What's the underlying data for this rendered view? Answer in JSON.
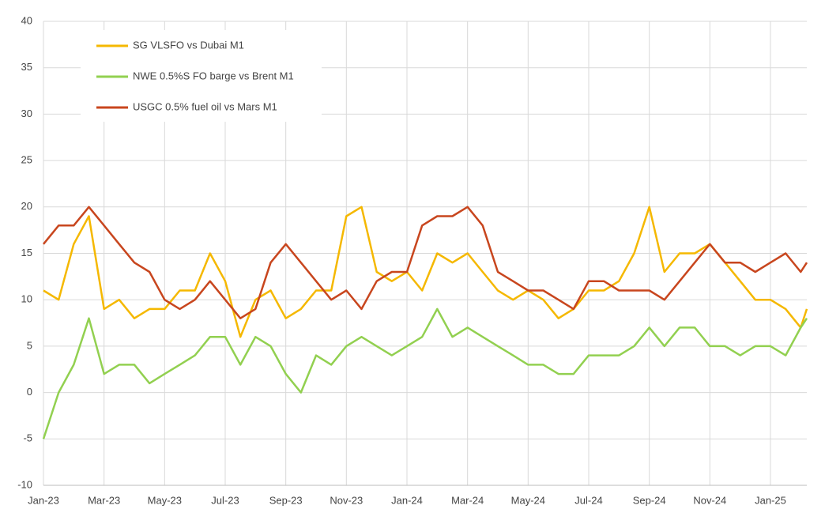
{
  "chart_data": {
    "type": "line",
    "x": [
      0,
      0.5,
      1,
      1.5,
      2,
      2.5,
      3,
      3.5,
      4,
      4.5,
      5,
      5.5,
      6,
      6.5,
      7,
      7.5,
      8,
      8.5,
      9,
      9.5,
      10,
      10.5,
      11,
      11.5,
      12,
      12.5,
      13,
      13.5,
      14,
      14.5,
      15,
      15.5,
      16,
      16.5,
      17,
      17.5,
      18,
      18.5,
      19,
      19.5,
      20,
      20.5,
      21,
      21.5,
      22,
      22.5,
      23,
      23.5,
      24,
      24.5,
      25,
      25.2
    ],
    "series": [
      {
        "name": "SG VLSFO vs Dubai M1",
        "color": "#f5b800",
        "values": [
          11,
          10,
          16,
          19,
          9,
          10,
          8,
          9,
          9,
          11,
          11,
          15,
          12,
          6,
          10,
          11,
          8,
          9,
          11,
          11,
          19,
          20,
          13,
          12,
          13,
          11,
          15,
          14,
          15,
          13,
          11,
          10,
          11,
          10,
          8,
          9,
          11,
          11,
          12,
          15,
          20,
          13,
          15,
          15,
          16,
          14,
          12,
          10,
          10,
          9,
          7,
          9
        ]
      },
      {
        "name": "NWE 0.5%S FO barge vs Brent M1",
        "color": "#92d050",
        "values": [
          -5,
          0,
          3,
          8,
          2,
          3,
          3,
          1,
          2,
          3,
          4,
          6,
          6,
          3,
          6,
          5,
          2,
          0,
          4,
          3,
          5,
          6,
          5,
          4,
          5,
          6,
          9,
          6,
          7,
          6,
          5,
          4,
          3,
          3,
          2,
          2,
          4,
          4,
          4,
          5,
          7,
          5,
          7,
          7,
          5,
          5,
          4,
          5,
          5,
          4,
          7,
          8
        ]
      },
      {
        "name": "USGC 0.5% fuel oil vs Mars M1",
        "color": "#c8461e",
        "values": [
          16,
          18,
          18,
          20,
          18,
          16,
          14,
          13,
          10,
          9,
          10,
          12,
          10,
          8,
          9,
          14,
          16,
          14,
          12,
          10,
          11,
          9,
          12,
          13,
          13,
          18,
          19,
          19,
          20,
          18,
          13,
          12,
          11,
          11,
          10,
          9,
          12,
          12,
          11,
          11,
          11,
          10,
          12,
          14,
          16,
          14,
          14,
          13,
          14,
          15,
          13,
          14
        ]
      }
    ],
    "xlim": [
      0,
      25.2
    ],
    "xticks": [
      {
        "value": 0,
        "label": "Jan-23"
      },
      {
        "value": 2,
        "label": "Mar-23"
      },
      {
        "value": 4,
        "label": "May-23"
      },
      {
        "value": 6,
        "label": "Jul-23"
      },
      {
        "value": 8,
        "label": "Sep-23"
      },
      {
        "value": 10,
        "label": "Nov-23"
      },
      {
        "value": 12,
        "label": "Jan-24"
      },
      {
        "value": 14,
        "label": "Mar-24"
      },
      {
        "value": 16,
        "label": "May-24"
      },
      {
        "value": 18,
        "label": "Jul-24"
      },
      {
        "value": 20,
        "label": "Sep-24"
      },
      {
        "value": 22,
        "label": "Nov-24"
      },
      {
        "value": 24,
        "label": "Jan-25"
      }
    ],
    "ylim": [
      -10,
      40
    ],
    "yticks": [
      -10,
      -5,
      0,
      5,
      10,
      15,
      20,
      25,
      30,
      35,
      40
    ],
    "grid": true,
    "legend": "upper-left"
  }
}
